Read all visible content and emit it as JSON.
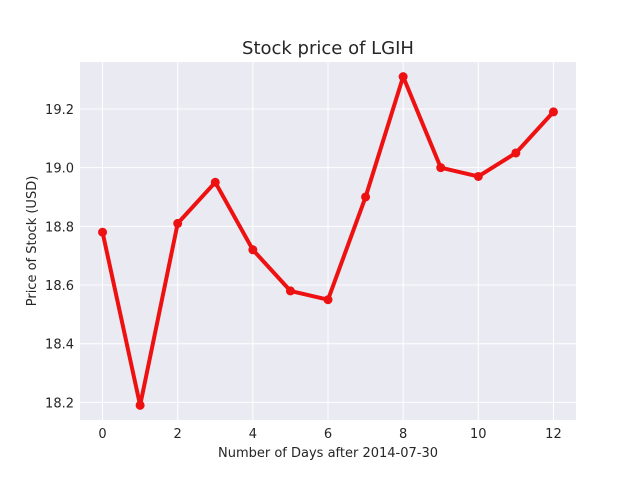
{
  "chart_data": {
    "type": "line",
    "title": "Stock price of LGIH",
    "xlabel": "Number of Days after 2014-07-30",
    "ylabel": "Price of Stock (USD)",
    "x": [
      0,
      1,
      2,
      3,
      4,
      5,
      6,
      7,
      8,
      9,
      10,
      11,
      12
    ],
    "series": [
      {
        "values": [
          18.78,
          18.19,
          18.81,
          18.95,
          18.72,
          18.58,
          18.55,
          18.9,
          19.31,
          19.0,
          18.97,
          19.05,
          19.19
        ]
      }
    ],
    "xticks": [
      "0",
      "2",
      "4",
      "6",
      "8",
      "10",
      "12"
    ],
    "yticks": [
      "18.2",
      "18.4",
      "18.6",
      "18.8",
      "19.0",
      "19.2"
    ],
    "xlim": [
      -0.6,
      12.6
    ],
    "ylim": [
      18.14,
      19.36
    ],
    "grid": true,
    "colors": {
      "line": "#ee1111",
      "background": "#eaeaf2",
      "grid": "#ffffff"
    }
  }
}
